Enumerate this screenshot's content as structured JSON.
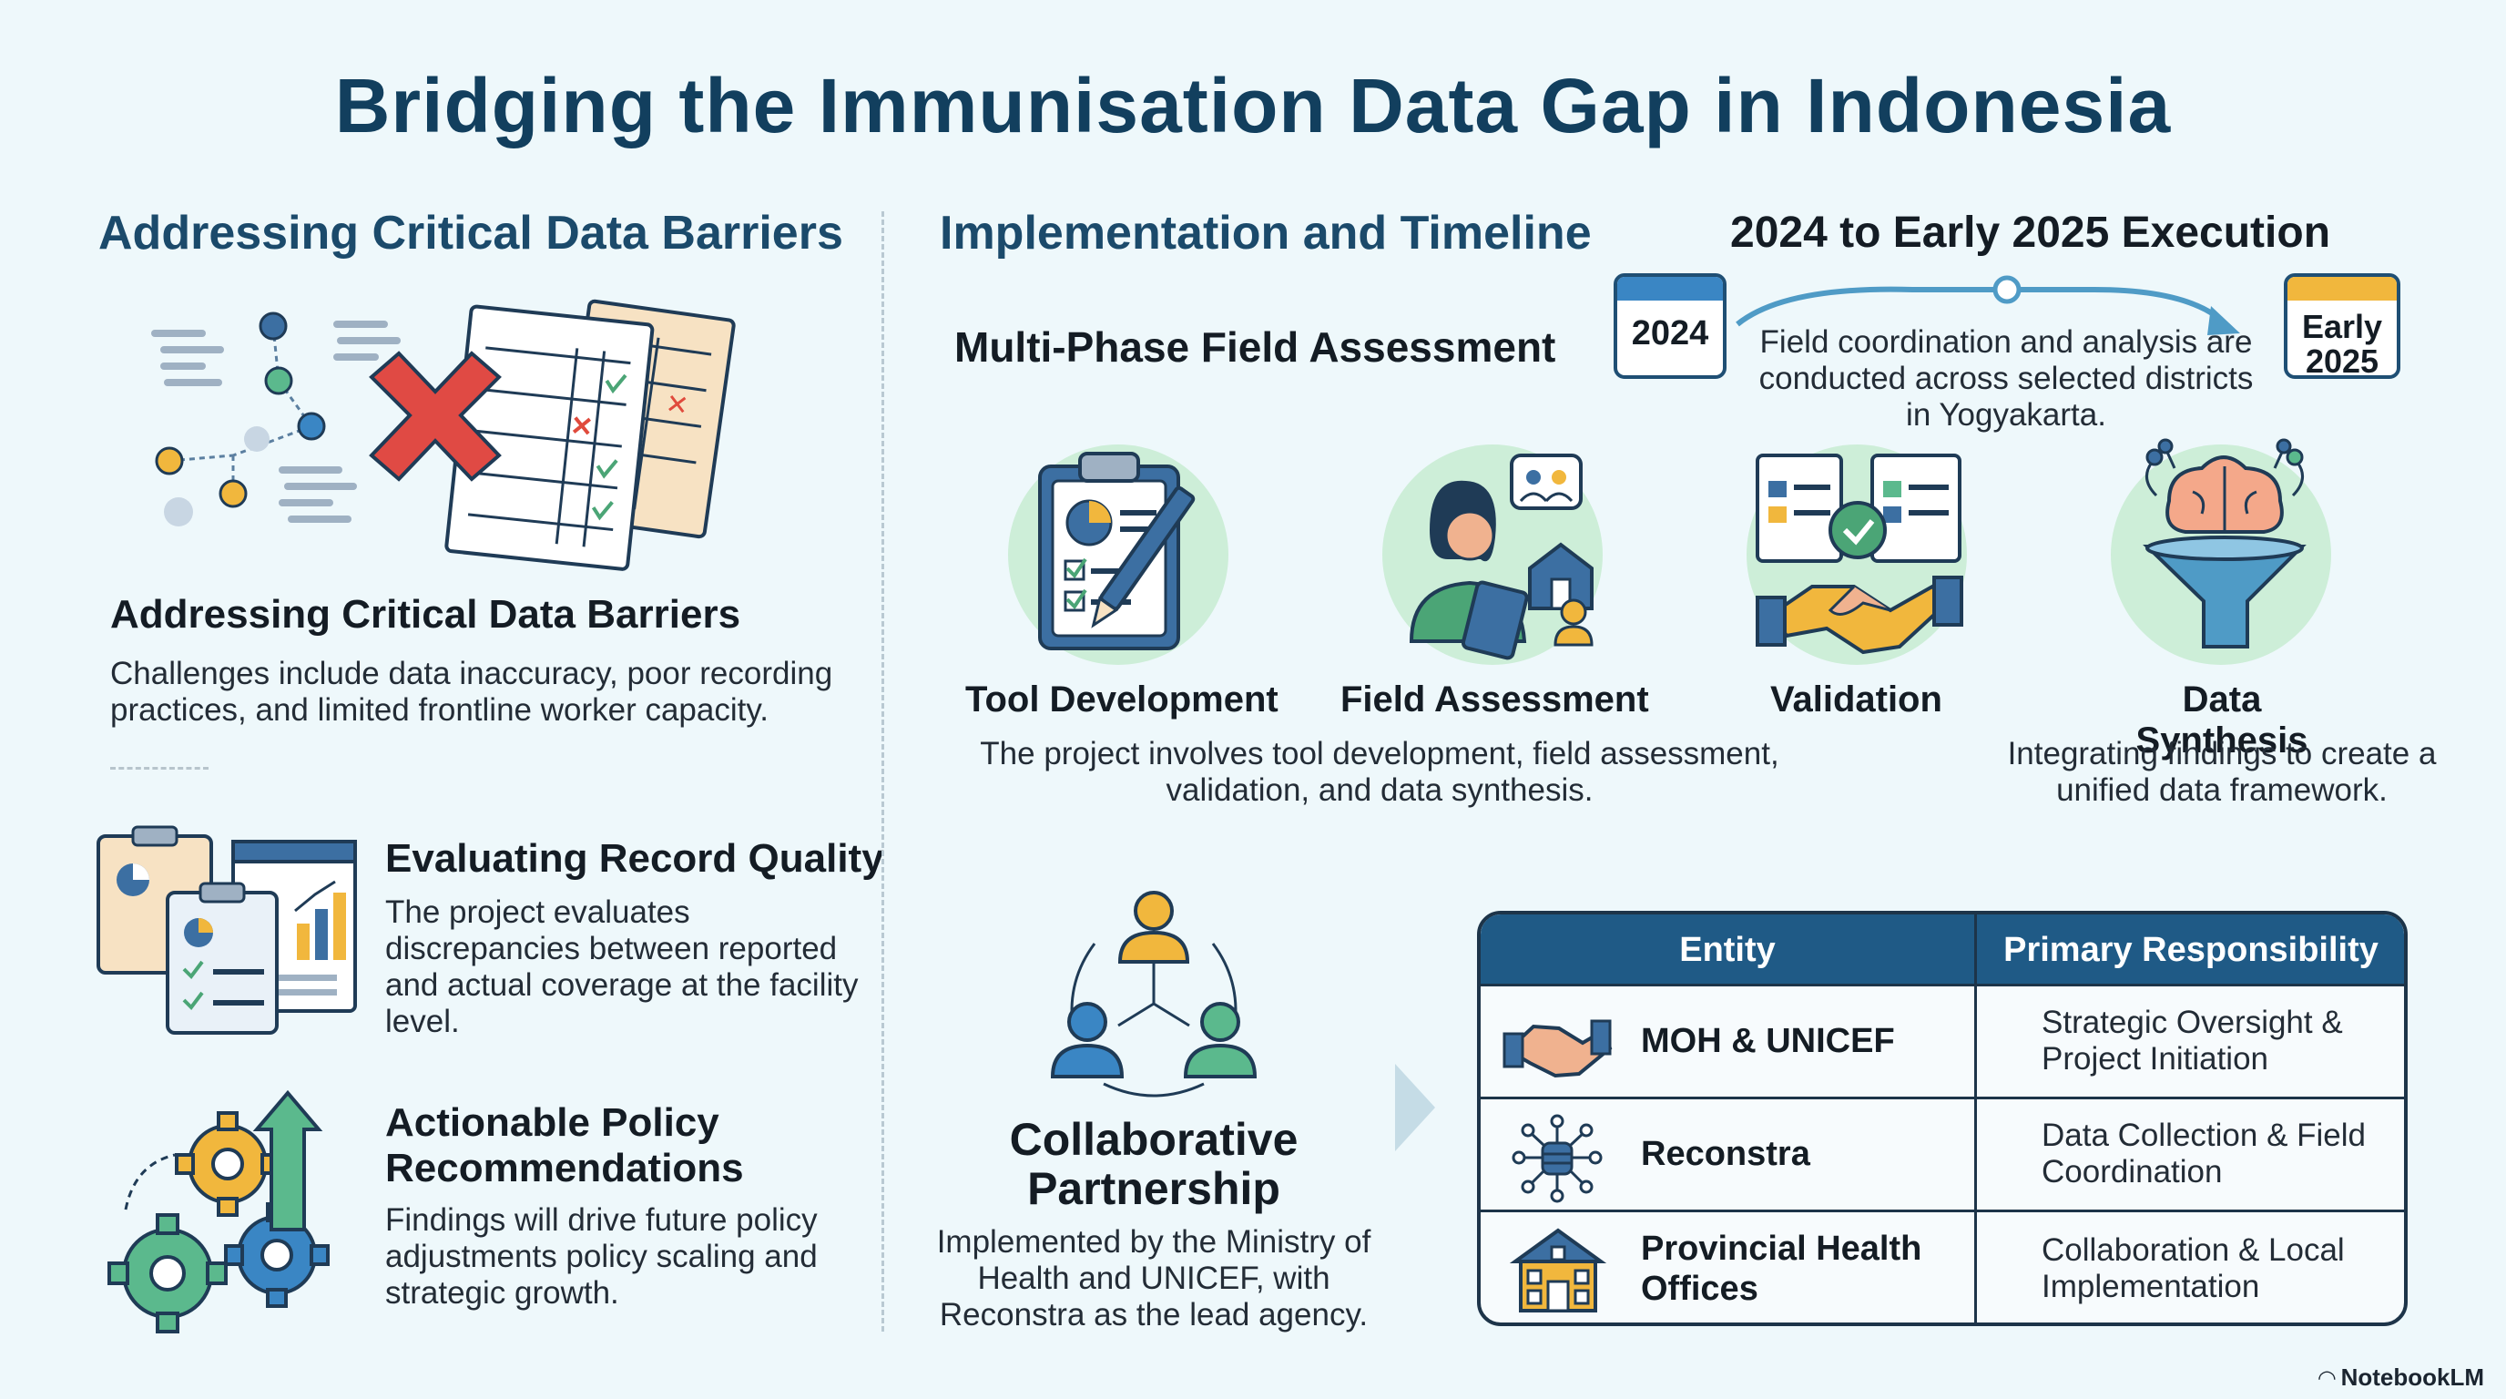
{
  "title": "Bridging the Immunisation Data Gap in Indonesia",
  "left": {
    "heading": "Addressing Critical Data Barriers",
    "barriers": {
      "title": "Addressing Critical Data Barriers",
      "text": "Challenges include data inaccuracy, poor recording practices, and limited frontline worker capacity."
    },
    "quality": {
      "title": "Evaluating Record Quality",
      "text": "The project evaluates discrepancies between reported and actual coverage at the facility level."
    },
    "policy": {
      "title": "Actionable Policy Recommendations",
      "text": "Findings will drive future policy adjustments policy scaling and strategic growth."
    }
  },
  "right": {
    "heading": "Implementation and Timeline",
    "timeline": {
      "heading": "2024 to Early 2025 Execution",
      "start": "2024",
      "end": "Early 2025",
      "text": "Field coordination and analysis are conducted across selected districts in Yogyakarta."
    },
    "phase_heading": "Multi-Phase Field Assessment",
    "phases": [
      {
        "label": "Tool Development",
        "icon": "clipboard-pen-icon"
      },
      {
        "label": "Field Assessment",
        "icon": "field-worker-icon"
      },
      {
        "label": "Validation",
        "icon": "handshake-validation-icon"
      },
      {
        "label": "Data Synthesis",
        "icon": "brain-funnel-icon"
      }
    ],
    "phase_text": "The project involves tool development, field assessment, validation, and data synthesis.",
    "synthesis_text": "Integrating findings to create a unified data framework.",
    "partnership": {
      "title": "Collaborative Partnership",
      "text": "Implemented by the Ministry of Health and UNICEF, with Reconstra as the lead agency."
    },
    "table": {
      "headers": [
        "Entity",
        "Primary Responsibility"
      ],
      "rows": [
        {
          "entity": "MOH & UNICEF",
          "responsibility": "Strategic Oversight & Project Initiation",
          "icon": "handshake-icon"
        },
        {
          "entity": "Reconstra",
          "responsibility": "Data Collection & Field Coordination",
          "icon": "network-database-icon"
        },
        {
          "entity": "Provincial Health Offices",
          "responsibility": "Collaboration & Local Implementation",
          "icon": "building-icon"
        }
      ]
    }
  },
  "brand": "NotebookLM",
  "colors": {
    "title": "#123f5e",
    "accent": "#1f5a86",
    "background": "#eef8fb",
    "icon_circle": "#cdeed8"
  }
}
